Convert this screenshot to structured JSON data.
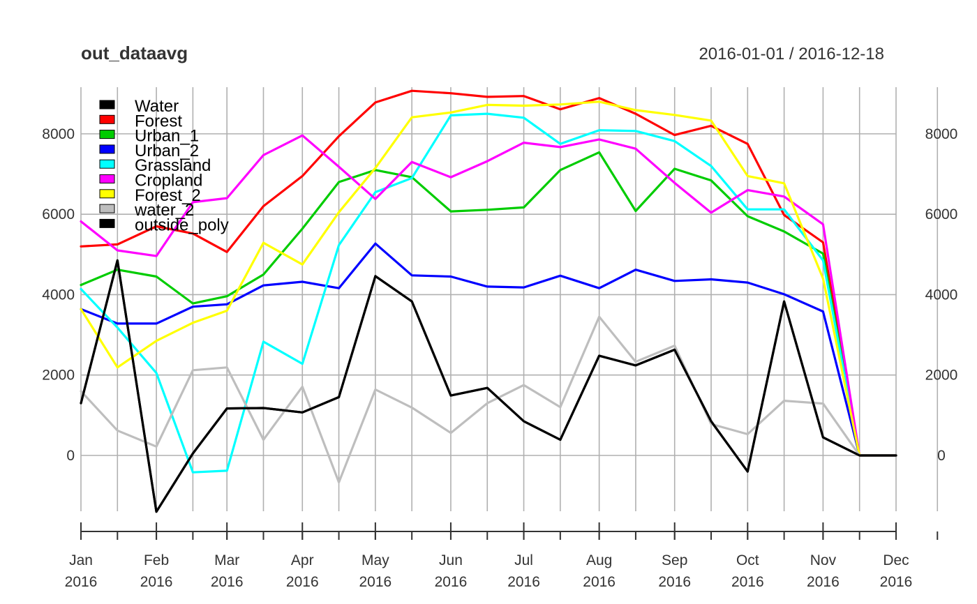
{
  "chart_data": {
    "type": "line",
    "title": "out_dataavg",
    "date_range": "2016-01-01 / 2016-12-18",
    "x": [
      "2016-01-01",
      "2016-01-16",
      "2016-02-01",
      "2016-02-16",
      "2016-03-01",
      "2016-03-16",
      "2016-04-01",
      "2016-04-16",
      "2016-05-01",
      "2016-05-16",
      "2016-06-01",
      "2016-06-16",
      "2016-07-01",
      "2016-07-16",
      "2016-08-01",
      "2016-08-16",
      "2016-09-01",
      "2016-09-16",
      "2016-10-01",
      "2016-10-16",
      "2016-11-01",
      "2016-11-16",
      "2016-12-01"
    ],
    "x_ticks": [
      {
        "month": "Jan",
        "year": "2016"
      },
      {
        "month": "Feb",
        "year": "2016"
      },
      {
        "month": "Mar",
        "year": "2016"
      },
      {
        "month": "Apr",
        "year": "2016"
      },
      {
        "month": "May",
        "year": "2016"
      },
      {
        "month": "Jun",
        "year": "2016"
      },
      {
        "month": "Jul",
        "year": "2016"
      },
      {
        "month": "Aug",
        "year": "2016"
      },
      {
        "month": "Sep",
        "year": "2016"
      },
      {
        "month": "Oct",
        "year": "2016"
      },
      {
        "month": "Nov",
        "year": "2016"
      },
      {
        "month": "Dec",
        "year": "2016"
      }
    ],
    "y_ticks": [
      "0",
      "2000",
      "4000",
      "6000",
      "8000"
    ],
    "ylim": [
      -1400,
      9100
    ],
    "grid": true,
    "legend_position": "top-left",
    "series": [
      {
        "name": "Water",
        "color": "#000000",
        "values": [
          1300,
          4850,
          -1400,
          50,
          1170,
          1180,
          1070,
          1450,
          4460,
          3830,
          1490,
          1680,
          850,
          390,
          2480,
          2240,
          2630,
          850,
          -400,
          3830,
          450,
          0,
          0
        ]
      },
      {
        "name": "Forest",
        "color": "#ff0000",
        "values": [
          5200,
          5250,
          5700,
          5520,
          5060,
          6200,
          6950,
          7940,
          8780,
          9070,
          9010,
          8920,
          8940,
          8610,
          8890,
          8500,
          7970,
          8200,
          7750,
          5980,
          5300,
          0,
          0
        ]
      },
      {
        "name": "Urban_1",
        "color": "#00cc00",
        "values": [
          4240,
          4620,
          4450,
          3780,
          3960,
          4500,
          5640,
          6800,
          7100,
          6920,
          6070,
          6110,
          6170,
          7100,
          7540,
          6080,
          7130,
          6840,
          5950,
          5570,
          5020,
          0,
          0
        ]
      },
      {
        "name": "Urban_2",
        "color": "#0000ff",
        "values": [
          3640,
          3280,
          3280,
          3700,
          3760,
          4230,
          4320,
          4160,
          5270,
          4480,
          4450,
          4200,
          4180,
          4470,
          4160,
          4620,
          4340,
          4380,
          4300,
          4010,
          3580,
          0,
          0
        ]
      },
      {
        "name": "Grassland",
        "color": "#00ffff",
        "values": [
          4140,
          3180,
          2050,
          -420,
          -380,
          2830,
          2280,
          5230,
          6550,
          6900,
          8460,
          8500,
          8400,
          7750,
          8090,
          8070,
          7820,
          7200,
          6120,
          6120,
          4850,
          0,
          0
        ]
      },
      {
        "name": "Cropland",
        "color": "#ff00ff",
        "values": [
          5820,
          5100,
          4960,
          6300,
          6400,
          7470,
          7960,
          7180,
          6380,
          7300,
          6920,
          7320,
          7780,
          7670,
          7860,
          7630,
          6780,
          6040,
          6600,
          6440,
          5750,
          0,
          0
        ]
      },
      {
        "name": "Forest_2",
        "color": "#ffff00",
        "values": [
          3640,
          2190,
          2850,
          3300,
          3600,
          5290,
          4750,
          6050,
          7150,
          8410,
          8530,
          8720,
          8700,
          8730,
          8800,
          8590,
          8470,
          8330,
          6950,
          6770,
          4400,
          0,
          0
        ]
      },
      {
        "name": "water_2",
        "color": "#bebebe",
        "values": [
          1600,
          620,
          220,
          2120,
          2190,
          390,
          1710,
          -670,
          1640,
          1190,
          560,
          1300,
          1750,
          1200,
          3450,
          2330,
          2730,
          780,
          530,
          1360,
          1290,
          0,
          0
        ]
      },
      {
        "name": "outside_poly",
        "color": "#000000",
        "values": [
          1300,
          4850,
          -1400,
          50,
          1170,
          1180,
          1070,
          1450,
          4460,
          3830,
          1490,
          1680,
          850,
          390,
          2480,
          2240,
          2630,
          850,
          -400,
          3830,
          450,
          0,
          0
        ]
      }
    ]
  }
}
